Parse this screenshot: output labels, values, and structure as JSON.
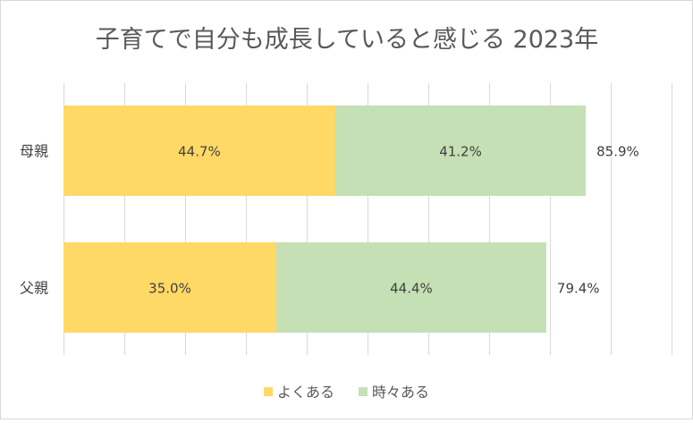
{
  "chart_data": {
    "type": "bar",
    "orientation": "horizontal",
    "stacked": true,
    "title": "子育てで自分も成長していると感じる 2023年",
    "categories": [
      "母親",
      "父親"
    ],
    "series": [
      {
        "name": "よくある",
        "values": [
          44.7,
          35.0
        ],
        "labels": [
          "44.7%",
          "35.0%"
        ],
        "color": "#ffd966"
      },
      {
        "name": "時々ある",
        "values": [
          41.2,
          44.4
        ],
        "labels": [
          "41.2%",
          "44.4%"
        ],
        "color": "#c5e0b4"
      }
    ],
    "totals": [
      85.9,
      79.4
    ],
    "total_labels": [
      "85.9%",
      "79.4%"
    ],
    "xlim": [
      0,
      100
    ],
    "grid": true,
    "legend_position": "bottom",
    "text_color": "#404040",
    "title_color": "#595959",
    "grid_color": "#d9d9d9"
  }
}
